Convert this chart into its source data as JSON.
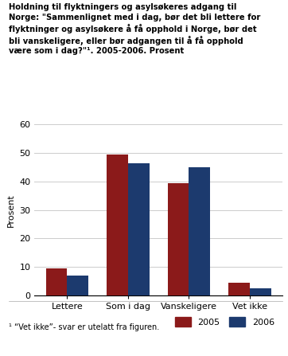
{
  "title_lines": [
    "Holdning til flyktningers og asylsøkeres adgang til",
    "Norge: \"Sammenlignet med i dag, bør det bli lettere for",
    "flyktninger og asylsøkere å få opphold i Norge, bør det",
    "bli vanskeligere, eller bør adgangen til å få opphold",
    "være som i dag?\"¹. 2005-2006. Prosent"
  ],
  "ylabel": "Prosent",
  "categories": [
    "Lettere",
    "Som i dag",
    "Vanskeligere",
    "Vet ikke"
  ],
  "values_2005": [
    9.5,
    49.5,
    39.5,
    4.5
  ],
  "values_2006": [
    7.0,
    46.5,
    45.0,
    2.5
  ],
  "color_2005": "#8B1A1A",
  "color_2006": "#1C3A6E",
  "ylim": [
    0,
    60
  ],
  "yticks": [
    0,
    10,
    20,
    30,
    40,
    50,
    60
  ],
  "legend_labels": [
    "2005",
    "2006"
  ],
  "footnote": "¹ “Vet ikke”- svar er utelatt fra figuren.",
  "bar_width": 0.35,
  "background_color": "#ffffff"
}
